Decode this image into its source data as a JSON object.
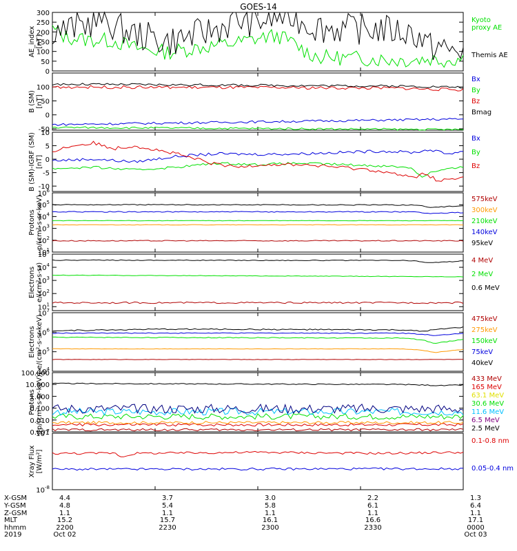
{
  "title": "GOES-14",
  "colors": {
    "black": "#000000",
    "green": "#00e000",
    "blue": "#0000dd",
    "red": "#dd0000",
    "orange": "#ff9900",
    "darkred": "#b00000",
    "cyan": "#00c0ff",
    "yellow": "#e0e000",
    "darkblue": "#000080",
    "purple": "#800080"
  },
  "chart_data": [
    {
      "type": "line",
      "id": "ae",
      "ylabel_lines": [
        "AE_index",
        "[nT]"
      ],
      "ylim": [
        0,
        300
      ],
      "yscale": "linear",
      "yticks": [
        0,
        50,
        100,
        150,
        200,
        250,
        300
      ],
      "ytick_labels": [
        "0",
        "50",
        "100",
        "150",
        "200",
        "250",
        "300"
      ],
      "series": [
        {
          "name": "Kyoto proxy AE",
          "color": "green",
          "x": [
            0,
            0.03,
            0.08,
            0.15,
            0.2,
            0.28,
            0.35,
            0.45,
            0.52,
            0.55,
            0.58,
            0.62,
            0.65,
            0.75,
            0.85,
            0.92,
            0.95,
            1
          ],
          "y": [
            215,
            175,
            160,
            155,
            118,
            96,
            118,
            145,
            175,
            180,
            150,
            95,
            70,
            65,
            55,
            62,
            55,
            65
          ],
          "noise": 4
        },
        {
          "name": "Themis AE",
          "color": "black",
          "x": [
            0,
            0.03,
            0.08,
            0.12,
            0.16,
            0.2,
            0.28,
            0.33,
            0.4,
            0.45,
            0.5,
            0.53,
            0.56,
            0.58,
            0.61,
            0.63,
            0.66,
            0.72,
            0.8,
            0.85,
            0.88,
            0.9,
            0.92,
            0.94,
            0.96,
            1
          ],
          "y": [
            215,
            210,
            240,
            265,
            220,
            190,
            150,
            175,
            215,
            260,
            250,
            270,
            280,
            280,
            255,
            235,
            220,
            215,
            215,
            200,
            195,
            160,
            120,
            130,
            100,
            110
          ],
          "noise": 8
        }
      ],
      "legend_labels": [
        [
          "Kyoto",
          "proxy AE"
        ],
        [
          "Themis AE"
        ]
      ],
      "legend_colors": [
        "green",
        "black"
      ]
    },
    {
      "type": "line",
      "id": "bsm",
      "ylabel_lines": [
        "B (SM)",
        "[nT]"
      ],
      "ylim": [
        -55,
        150
      ],
      "yscale": "linear",
      "yticks": [
        -50,
        0,
        50,
        100
      ],
      "ytick_labels": [
        "-50",
        "0",
        "50",
        "100"
      ],
      "series": [
        {
          "name": "Bx",
          "color": "blue",
          "x": [
            0,
            1
          ],
          "y": [
            -35,
            -15
          ],
          "noise": 0.6
        },
        {
          "name": "By",
          "color": "green",
          "x": [
            0,
            1
          ],
          "y": [
            -45,
            -53
          ],
          "noise": 0.5
        },
        {
          "name": "Bz",
          "color": "red",
          "x": [
            0,
            0.85,
            0.92,
            1
          ],
          "y": [
            100,
            96,
            92,
            90
          ],
          "noise": 0.8
        },
        {
          "name": "Bmag",
          "color": "black",
          "x": [
            0,
            0.85,
            1
          ],
          "y": [
            110,
            103,
            99
          ],
          "noise": 0.6
        }
      ],
      "legend_labels": [
        [
          "Bx"
        ],
        [
          "By"
        ],
        [
          "Bz"
        ],
        [
          "Bmag"
        ]
      ],
      "legend_colors": [
        "blue",
        "green",
        "red",
        "black"
      ]
    },
    {
      "type": "line",
      "id": "bigrf",
      "ylabel_lines": [
        "B (SM)-IGRF (SM)",
        "[nT]"
      ],
      "ylim": [
        -12,
        10
      ],
      "yscale": "linear",
      "yticks": [
        -10,
        -5,
        0,
        5,
        10
      ],
      "ytick_labels": [
        "-10",
        "-5",
        "0",
        "5",
        "10"
      ],
      "series": [
        {
          "name": "Bx",
          "color": "blue",
          "x": [
            0,
            0.1,
            0.2,
            0.3,
            0.4,
            0.5,
            0.6,
            0.7,
            0.8,
            0.88,
            0.92,
            0.96,
            1
          ],
          "y": [
            -0.5,
            0,
            -1,
            1,
            2,
            1.8,
            2,
            2.5,
            3,
            2.5,
            3.5,
            2,
            3
          ],
          "noise": 0.7
        },
        {
          "name": "By",
          "color": "green",
          "x": [
            0,
            0.1,
            0.2,
            0.3,
            0.4,
            0.5,
            0.6,
            0.7,
            0.8,
            0.87,
            0.9,
            0.92,
            0.95,
            1
          ],
          "y": [
            -3.5,
            -3,
            -4,
            -3,
            -1.5,
            -2,
            -1.5,
            -2,
            -2.5,
            -3,
            -6.5,
            -5,
            -4,
            -3
          ],
          "noise": 0.6
        },
        {
          "name": "Bz",
          "color": "red",
          "x": [
            0,
            0.05,
            0.1,
            0.15,
            0.2,
            0.3,
            0.35,
            0.4,
            0.45,
            0.5,
            0.6,
            0.7,
            0.78,
            0.85,
            0.88,
            0.9,
            0.94,
            1
          ],
          "y": [
            3,
            5,
            6,
            4,
            5,
            2,
            0,
            -2,
            -3,
            -2,
            -2,
            -3,
            -4,
            -6,
            -7,
            -5,
            -8,
            -7
          ],
          "noise": 0.9
        }
      ],
      "legend_labels": [
        [
          "Bx"
        ],
        [
          "By"
        ],
        [
          "Bz"
        ]
      ],
      "legend_colors": [
        "blue",
        "green",
        "red"
      ]
    },
    {
      "type": "line",
      "id": "protons1",
      "ylabel_lines": [
        "Protons",
        "p/(cm²-s-sr-keV)"
      ],
      "ylim": [
        10,
        1000000
      ],
      "yscale": "log",
      "yticks": [
        10,
        100,
        1000,
        10000,
        100000,
        1000000
      ],
      "ytick_labels": [
        "10^1",
        "10^2",
        "10^3",
        "10^4",
        "10^5",
        "10^6"
      ],
      "series": [
        {
          "name": "575keV",
          "color": "darkred",
          "x": [
            0,
            1
          ],
          "y": [
            90,
            90
          ],
          "noise": 0.04
        },
        {
          "name": "300keV",
          "color": "orange",
          "x": [
            0,
            1
          ],
          "y": [
            2000,
            2000
          ],
          "noise": 0.02
        },
        {
          "name": "210keV",
          "color": "green",
          "x": [
            0,
            1
          ],
          "y": [
            4500,
            4500
          ],
          "noise": 0.02
        },
        {
          "name": "140keV",
          "color": "blue",
          "x": [
            0,
            0.88,
            0.92,
            1
          ],
          "y": [
            25000,
            25000,
            18000,
            22000
          ],
          "noise": 0.04
        },
        {
          "name": "95keV",
          "color": "black",
          "x": [
            0,
            0.2,
            0.88,
            0.92,
            1
          ],
          "y": [
            100000,
            100000,
            95000,
            60000,
            80000
          ],
          "noise": 0.04
        }
      ],
      "legend_labels": [
        [
          "575keV"
        ],
        [
          "300keV"
        ],
        [
          "210keV"
        ],
        [
          "140keV"
        ],
        [
          "95keV"
        ]
      ],
      "legend_colors": [
        "darkred",
        "orange",
        "green",
        "blue",
        "black"
      ]
    },
    {
      "type": "line",
      "id": "electrons1",
      "ylabel_lines": [
        "Electrons",
        "e/(cm²-s-sr)"
      ],
      "ylim": [
        5,
        100000
      ],
      "yscale": "log",
      "yticks": [
        10,
        100,
        1000,
        10000,
        100000
      ],
      "ytick_labels": [
        "10^1",
        "10^2",
        "10^3",
        "10^4",
        "10^5"
      ],
      "series": [
        {
          "name": "4 MeV",
          "color": "darkred",
          "x": [
            0,
            1
          ],
          "y": [
            20,
            20
          ],
          "noise": 0.06
        },
        {
          "name": "2 MeV",
          "color": "green",
          "x": [
            0,
            1
          ],
          "y": [
            2500,
            1900
          ],
          "noise": 0.02
        },
        {
          "name": "0.6 MeV",
          "color": "black",
          "x": [
            0,
            0.85,
            0.88,
            0.92,
            1
          ],
          "y": [
            35000,
            33000,
            30000,
            22000,
            30000
          ],
          "noise": 0.03
        }
      ],
      "legend_labels": [
        [
          "4 MeV"
        ],
        [
          "2 MeV"
        ],
        [
          "0.6 MeV"
        ]
      ],
      "legend_colors": [
        "darkred",
        "green",
        "black"
      ]
    },
    {
      "type": "line",
      "id": "electrons2",
      "ylabel_lines": [
        "Electrons",
        "e/(cm²-s-sr-keV)"
      ],
      "ylim": [
        10000,
        10000000
      ],
      "yscale": "log",
      "yticks": [
        10000,
        100000,
        1000000,
        10000000
      ],
      "ytick_labels": [
        "10^4",
        "10^5",
        "10^6",
        "10^7"
      ],
      "series": [
        {
          "name": "475keV",
          "color": "darkred",
          "x": [
            0,
            1
          ],
          "y": [
            40000,
            40000
          ],
          "noise": 0.01
        },
        {
          "name": "275keV",
          "color": "orange",
          "x": [
            0,
            0.85,
            0.9,
            0.93,
            1
          ],
          "y": [
            140000,
            140000,
            120000,
            90000,
            130000
          ],
          "noise": 0.01
        },
        {
          "name": "150keV",
          "color": "green",
          "x": [
            0,
            0.85,
            0.9,
            0.93,
            1
          ],
          "y": [
            550000,
            500000,
            400000,
            260000,
            420000
          ],
          "noise": 0.02
        },
        {
          "name": "75keV",
          "color": "blue",
          "x": [
            0,
            0.85,
            0.9,
            0.93,
            1
          ],
          "y": [
            900000,
            900000,
            800000,
            650000,
            900000
          ],
          "noise": 0.02
        },
        {
          "name": "40keV",
          "color": "black",
          "x": [
            0,
            0.3,
            0.85,
            0.9,
            1
          ],
          "y": [
            1200000,
            1450000,
            1300000,
            1100000,
            1800000
          ],
          "noise": 0.03
        }
      ],
      "legend_labels": [
        [
          "475keV"
        ],
        [
          "275keV"
        ],
        [
          "150keV"
        ],
        [
          "75keV"
        ],
        [
          "40keV"
        ]
      ],
      "legend_colors": [
        "darkred",
        "orange",
        "green",
        "blue",
        "black"
      ]
    },
    {
      "type": "line",
      "id": "protons2",
      "ylabel_lines": [
        "Protons",
        "[p/(cm²-s-sr-keV)]"
      ],
      "ylim": [
        0.001,
        100
      ],
      "yscale": "log",
      "yticks": [
        0.001,
        0.01,
        0.1,
        1,
        10,
        100
      ],
      "ytick_labels": [
        "0.001",
        "0.010",
        "0.100",
        "1.000",
        "10.000",
        "100.000"
      ],
      "series": [
        {
          "name": "433 MeV",
          "color": "darkred",
          "x": [
            0,
            1
          ],
          "y": [
            0.0015,
            0.0015
          ],
          "noise": 0.1
        },
        {
          "name": "165 MeV",
          "color": "red",
          "x": [
            0,
            1
          ],
          "y": [
            0.004,
            0.004
          ],
          "noise": 0.12
        },
        {
          "name": "63.1 MeV",
          "color": "orange",
          "x": [
            0,
            1
          ],
          "y": [
            0.006,
            0.006
          ],
          "noise": 0.12
        },
        {
          "name": "30.6 MeV",
          "color": "green",
          "x": [
            0,
            1
          ],
          "y": [
            0.02,
            0.02
          ],
          "noise": 0.25
        },
        {
          "name": "11.6 MeV",
          "color": "cyan",
          "x": [
            0,
            1
          ],
          "y": [
            0.05,
            0.05
          ],
          "noise": 0.3
        },
        {
          "name": "6.5 MeV",
          "color": "darkblue",
          "x": [
            0,
            1
          ],
          "y": [
            0.09,
            0.09
          ],
          "noise": 0.4
        },
        {
          "name": "2.5 MeV",
          "color": "black",
          "x": [
            0,
            0.85,
            0.95,
            1
          ],
          "y": [
            12,
            10,
            8,
            9
          ],
          "noise": 0.04
        }
      ],
      "legend_labels": [
        [
          "433 MeV"
        ],
        [
          "165 MeV"
        ],
        [
          "63.1 MeV"
        ],
        [
          "30.6 MeV"
        ],
        [
          "11.6 MeV"
        ],
        [
          "6.5 MeV"
        ],
        [
          "2.5 MeV"
        ]
      ],
      "legend_colors": [
        "darkred",
        "red",
        "yellow",
        "green",
        "cyan",
        "purple",
        "black"
      ]
    },
    {
      "type": "line",
      "id": "xray",
      "ylabel_lines": [
        "Xray Flux",
        "[W/m²]"
      ],
      "ylim": [
        1e-08,
        1e-07
      ],
      "yscale": "log",
      "yticks": [
        1e-08,
        1e-07
      ],
      "ytick_labels": [
        "10^-8",
        "10^-7"
      ],
      "series": [
        {
          "name": "0.1-0.8 nm",
          "color": "red",
          "x": [
            0,
            0.1,
            0.15,
            0.17,
            0.2,
            0.5,
            0.8,
            1
          ],
          "y": [
            4.4e-08,
            4.4e-08,
            4.5e-08,
            3.8e-08,
            4.4e-08,
            4.6e-08,
            4.4e-08,
            4.6e-08
          ],
          "noise": 0.02
        },
        {
          "name": "0.05-0.4 nm",
          "color": "blue",
          "x": [
            0,
            1
          ],
          "y": [
            2.3e-08,
            2.35e-08
          ],
          "noise": 0.02
        }
      ],
      "legend_labels": [
        [
          "0.1-0.8 nm"
        ],
        [
          "0.05-0.4 nm"
        ]
      ],
      "legend_colors": [
        "red",
        "blue"
      ]
    }
  ],
  "x_axis": {
    "row_labels": [
      "X-GSM",
      "Y-GSM",
      "Z-GSM",
      "MLT",
      "hhmm",
      "2019"
    ],
    "ticks": [
      {
        "pos": 0,
        "values": [
          "4.4",
          "4.8",
          "1.1",
          "15.2",
          "2200",
          "Oct 02"
        ]
      },
      {
        "pos": 0.25,
        "values": [
          "3.7",
          "5.4",
          "1.1",
          "15.7",
          "2230",
          ""
        ]
      },
      {
        "pos": 0.5,
        "values": [
          "3.0",
          "5.8",
          "1.1",
          "16.1",
          "2300",
          ""
        ]
      },
      {
        "pos": 0.75,
        "values": [
          "2.2",
          "6.1",
          "1.1",
          "16.6",
          "2330",
          ""
        ]
      },
      {
        "pos": 1,
        "values": [
          "1.3",
          "6.4",
          "1.1",
          "17.1",
          "0000",
          "Oct 03"
        ]
      }
    ]
  }
}
